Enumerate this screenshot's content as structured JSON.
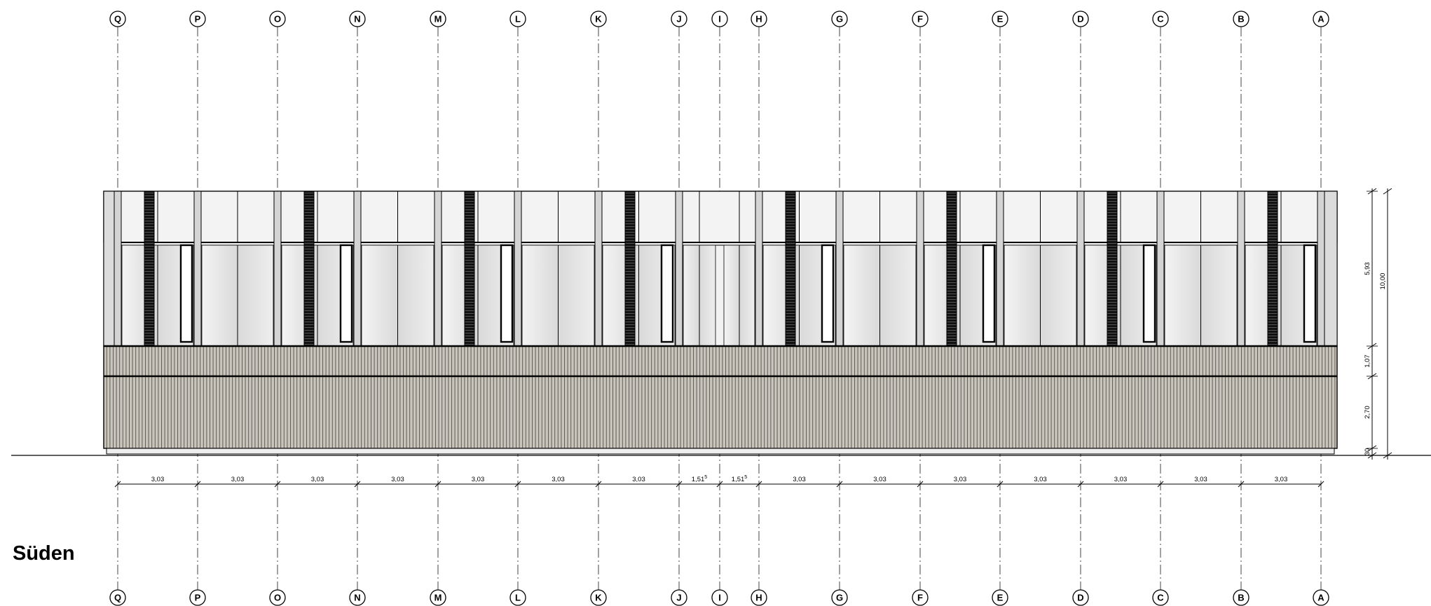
{
  "view_title": "Süden",
  "axes": [
    "Q",
    "P",
    "O",
    "N",
    "M",
    "L",
    "K",
    "J",
    "I",
    "H",
    "G",
    "F",
    "E",
    "D",
    "C",
    "B",
    "A"
  ],
  "horizontal_dimensions": [
    {
      "base": "3,03",
      "sup": ""
    },
    {
      "base": "3,03",
      "sup": ""
    },
    {
      "base": "3,03",
      "sup": ""
    },
    {
      "base": "3,03",
      "sup": ""
    },
    {
      "base": "3,03",
      "sup": ""
    },
    {
      "base": "3,03",
      "sup": ""
    },
    {
      "base": "3,03",
      "sup": ""
    },
    {
      "base": "1,51",
      "sup": "5"
    },
    {
      "base": "1,51",
      "sup": "5"
    },
    {
      "base": "3,03",
      "sup": ""
    },
    {
      "base": "3,03",
      "sup": ""
    },
    {
      "base": "3,03",
      "sup": ""
    },
    {
      "base": "3,03",
      "sup": ""
    },
    {
      "base": "3,03",
      "sup": ""
    },
    {
      "base": "3,03",
      "sup": ""
    },
    {
      "base": "3,03",
      "sup": ""
    }
  ],
  "vertical_dimensions": {
    "segments": [
      "5,93",
      "1,07",
      "2,70",
      "30"
    ],
    "total": "10,00"
  },
  "colors": {
    "line": "#000000",
    "glass": "#e6e6e6",
    "glass_light": "#f2f2f2",
    "cladding": "#bdb8b0",
    "cladding_line": "#6b665e",
    "column": "#d4d4d4",
    "louver": "#1a1a1a"
  }
}
